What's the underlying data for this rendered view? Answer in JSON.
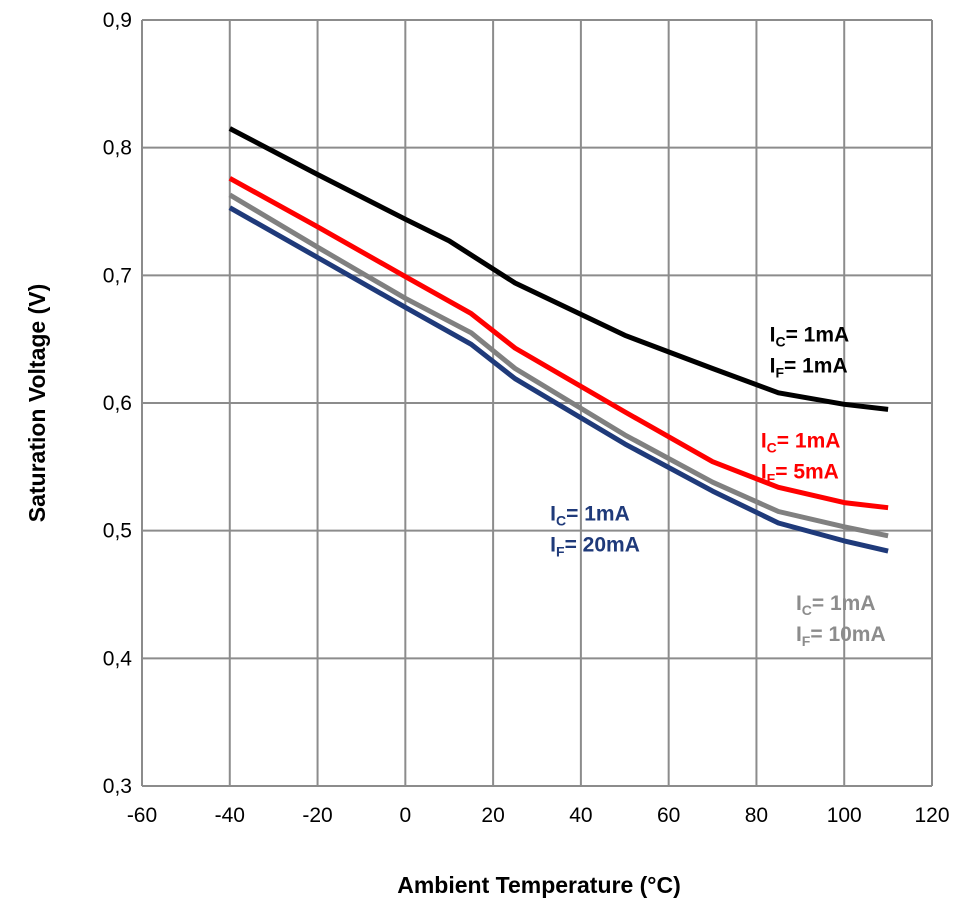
{
  "chart_data": {
    "type": "line",
    "title": "",
    "xlabel": "Ambient Temperature (°C)",
    "ylabel": "Saturation Voltage (V)",
    "xlim": [
      -60,
      120
    ],
    "ylim": [
      0.3,
      0.9
    ],
    "xticks": [
      -60,
      -40,
      -20,
      0,
      20,
      40,
      60,
      80,
      100,
      120
    ],
    "xtick_labels": [
      "-60",
      "-40",
      "-20",
      "0",
      "20",
      "40",
      "60",
      "80",
      "100",
      "120"
    ],
    "yticks": [
      0.3,
      0.4,
      0.5,
      0.6,
      0.7,
      0.8,
      0.9
    ],
    "ytick_labels": [
      "0,3",
      "0,4",
      "0,5",
      "0,6",
      "0,7",
      "0,8",
      "0,9"
    ],
    "grid": true,
    "series": [
      {
        "label_ic": "1mA",
        "label_if": "1mA",
        "color": "#000000",
        "x": [
          -40,
          -20,
          0,
          10,
          25,
          50,
          70,
          85,
          100,
          110
        ],
        "y": [
          0.815,
          0.779,
          0.744,
          0.727,
          0.694,
          0.653,
          0.627,
          0.608,
          0.599,
          0.595
        ]
      },
      {
        "label_ic": "1mA",
        "label_if": "5mA",
        "color": "#ff0000",
        "x": [
          -40,
          -20,
          0,
          15,
          25,
          50,
          70,
          85,
          100,
          110
        ],
        "y": [
          0.776,
          0.738,
          0.699,
          0.67,
          0.643,
          0.593,
          0.554,
          0.534,
          0.522,
          0.518
        ]
      },
      {
        "label_ic": "1mA",
        "label_if": "10mA",
        "color": "#808080",
        "x": [
          -40,
          -20,
          0,
          15,
          25,
          50,
          70,
          85,
          100,
          110
        ],
        "y": [
          0.763,
          0.722,
          0.682,
          0.655,
          0.627,
          0.575,
          0.538,
          0.515,
          0.503,
          0.496
        ]
      },
      {
        "label_ic": "1mA",
        "label_if": "20mA",
        "color": "#1f3a7a",
        "x": [
          -40,
          -20,
          0,
          15,
          25,
          50,
          70,
          85,
          100,
          110
        ],
        "y": [
          0.753,
          0.714,
          0.675,
          0.646,
          0.619,
          0.568,
          0.531,
          0.506,
          0.492,
          0.484
        ]
      }
    ],
    "annotations": [
      {
        "ic": "I",
        "ic_sub": "C",
        "ic_text": "= 1mA",
        "if": "I",
        "if_sub": "F",
        "if_text": "= 1mA",
        "color": "#000000",
        "anchor_x": 83,
        "anchor_y": 0.648
      },
      {
        "ic": "I",
        "ic_sub": "C",
        "ic_text": "= 1mA",
        "if": "I",
        "if_sub": "F",
        "if_text": "= 5mA",
        "color": "#ff0000",
        "anchor_x": 81,
        "anchor_y": 0.565
      },
      {
        "ic": "I",
        "ic_sub": "C",
        "ic_text": "= 1mA",
        "if": "I",
        "if_sub": "F",
        "if_text": "= 10mA",
        "color": "#8c8c8c",
        "anchor_x": 89,
        "anchor_y": 0.438
      },
      {
        "ic": "I",
        "ic_sub": "C",
        "ic_text": "= 1mA",
        "if": "I",
        "if_sub": "F",
        "if_text": "= 20mA",
        "color": "#1f3a7a",
        "anchor_x": 33,
        "anchor_y": 0.508
      }
    ]
  }
}
